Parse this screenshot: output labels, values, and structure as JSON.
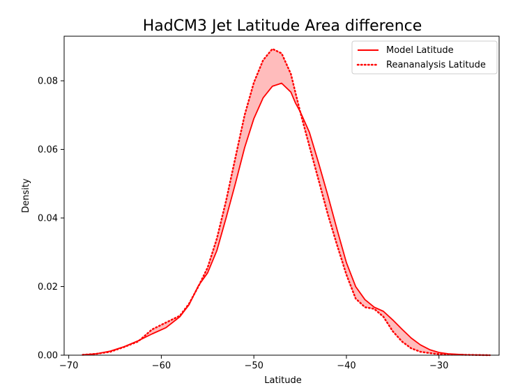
{
  "chart_data": {
    "type": "line",
    "title": "HadCM3 Jet Latitude Area difference",
    "xlabel": "Latitude",
    "ylabel": "Density",
    "xlim": [
      -70.5,
      -23.5
    ],
    "ylim": [
      0,
      0.093
    ],
    "xticks": [
      -70,
      -60,
      -50,
      -40,
      -30
    ],
    "yticks": [
      0.0,
      0.02,
      0.04,
      0.06,
      0.08
    ],
    "ytick_labels": [
      "0.00",
      "0.02",
      "0.04",
      "0.06",
      "0.08"
    ],
    "legend_position": "top-right",
    "grid": false,
    "fill_between": true,
    "colors": {
      "line": "#ff0000",
      "fill": "#ffbcbc"
    },
    "series": [
      {
        "name": "Model Latitude",
        "style": "solid",
        "x": [
          -68.5,
          -67,
          -65.5,
          -64,
          -62.5,
          -61,
          -59.5,
          -58,
          -57,
          -56,
          -55,
          -54,
          -53,
          -52,
          -51,
          -50,
          -49,
          -48,
          -47,
          -46,
          -45.5,
          -45,
          -44,
          -43,
          -42,
          -41,
          -40,
          -39,
          -38,
          -37,
          -36,
          -35,
          -34,
          -33,
          -32,
          -31,
          -30,
          -29,
          -27,
          -24.5
        ],
        "y": [
          0.0001,
          0.0004,
          0.0012,
          0.0025,
          0.0042,
          0.0062,
          0.008,
          0.0112,
          0.0147,
          0.0202,
          0.024,
          0.0305,
          0.04,
          0.05,
          0.0605,
          0.069,
          0.075,
          0.0784,
          0.0793,
          0.0767,
          0.0735,
          0.071,
          0.065,
          0.056,
          0.0465,
          0.0365,
          0.027,
          0.02,
          0.0162,
          0.014,
          0.0128,
          0.0103,
          0.0076,
          0.005,
          0.003,
          0.0016,
          0.0008,
          0.0004,
          0.0001,
          0.0
        ]
      },
      {
        "name": "Reananalysis Latitude",
        "style": "dotted",
        "x": [
          -68.5,
          -67,
          -65.5,
          -64,
          -62.5,
          -61,
          -59.5,
          -58,
          -57,
          -56,
          -55,
          -54,
          -53,
          -52,
          -51,
          -50,
          -49,
          -48,
          -47,
          -46,
          -45.5,
          -45,
          -44,
          -43,
          -42,
          -41,
          -40,
          -39,
          -38,
          -37,
          -36,
          -35,
          -34,
          -33,
          -32,
          -31,
          -30,
          -29,
          -27,
          -24.5
        ],
        "y": [
          0.0001,
          0.0004,
          0.001,
          0.0024,
          0.004,
          0.0075,
          0.0095,
          0.0115,
          0.015,
          0.02,
          0.0255,
          0.034,
          0.045,
          0.0575,
          0.07,
          0.0795,
          0.086,
          0.0893,
          0.088,
          0.082,
          0.0765,
          0.071,
          0.061,
          0.051,
          0.041,
          0.032,
          0.0235,
          0.0165,
          0.014,
          0.0135,
          0.0112,
          0.007,
          0.004,
          0.002,
          0.001,
          0.0006,
          0.0003,
          0.0002,
          0.0001,
          0.0
        ]
      }
    ]
  }
}
